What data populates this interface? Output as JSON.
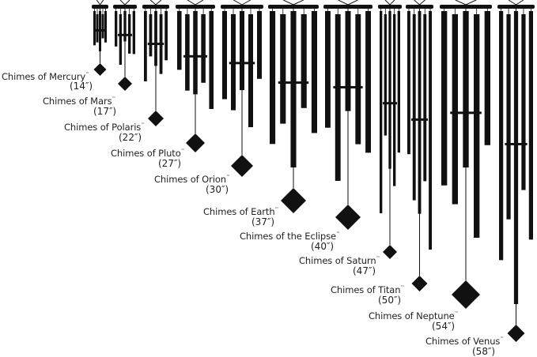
{
  "colors": {
    "silhouette": "#111111",
    "text": "#222222"
  },
  "trademark": "™",
  "chimes": [
    {
      "name": "Chimes of Mercury",
      "size": "(14″)"
    },
    {
      "name": "Chimes of Mars",
      "size": "(17″)"
    },
    {
      "name": "Chimes of Polaris",
      "size": "(22″)"
    },
    {
      "name": "Chimes of Pluto",
      "size": "(27″)"
    },
    {
      "name": "Chimes of Orion",
      "size": "(30″)"
    },
    {
      "name": "Chimes of Earth",
      "size": "(37″)"
    },
    {
      "name": "Chimes of the Eclipse",
      "size": "(40″)"
    },
    {
      "name": "Chimes of Saturn",
      "size": "(47″)"
    },
    {
      "name": "Chimes of Titan",
      "size": "(50″)"
    },
    {
      "name": "Chimes of Neptune",
      "size": "(54″)"
    },
    {
      "name": "Chimes of Venus",
      "size": "(58″)"
    }
  ]
}
